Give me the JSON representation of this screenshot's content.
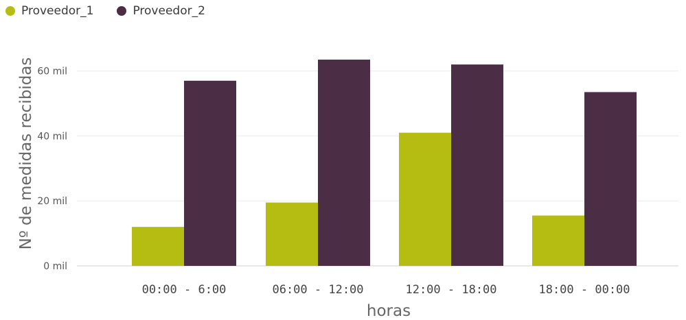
{
  "chart_data": {
    "type": "bar",
    "categories": [
      "00:00 - 6:00",
      "06:00 - 12:00",
      "12:00 - 18:00",
      "18:00 - 00:00"
    ],
    "series": [
      {
        "name": "Proveedor_1",
        "color": "#b5bd12",
        "values": [
          12000,
          19500,
          41000,
          15500
        ]
      },
      {
        "name": "Proveedor_2",
        "color": "#4b2d45",
        "values": [
          57000,
          63500,
          62000,
          53500
        ]
      }
    ],
    "xlabel": "horas",
    "ylabel": "Nº de medidas recibidas",
    "ylim": [
      0,
      66000
    ],
    "yticks": [
      0,
      20000,
      40000,
      60000
    ],
    "ytick_labels": [
      "0 mil",
      "20 mil",
      "40 mil",
      "60 mil"
    ],
    "grid": true,
    "legend_position": "top-left"
  }
}
